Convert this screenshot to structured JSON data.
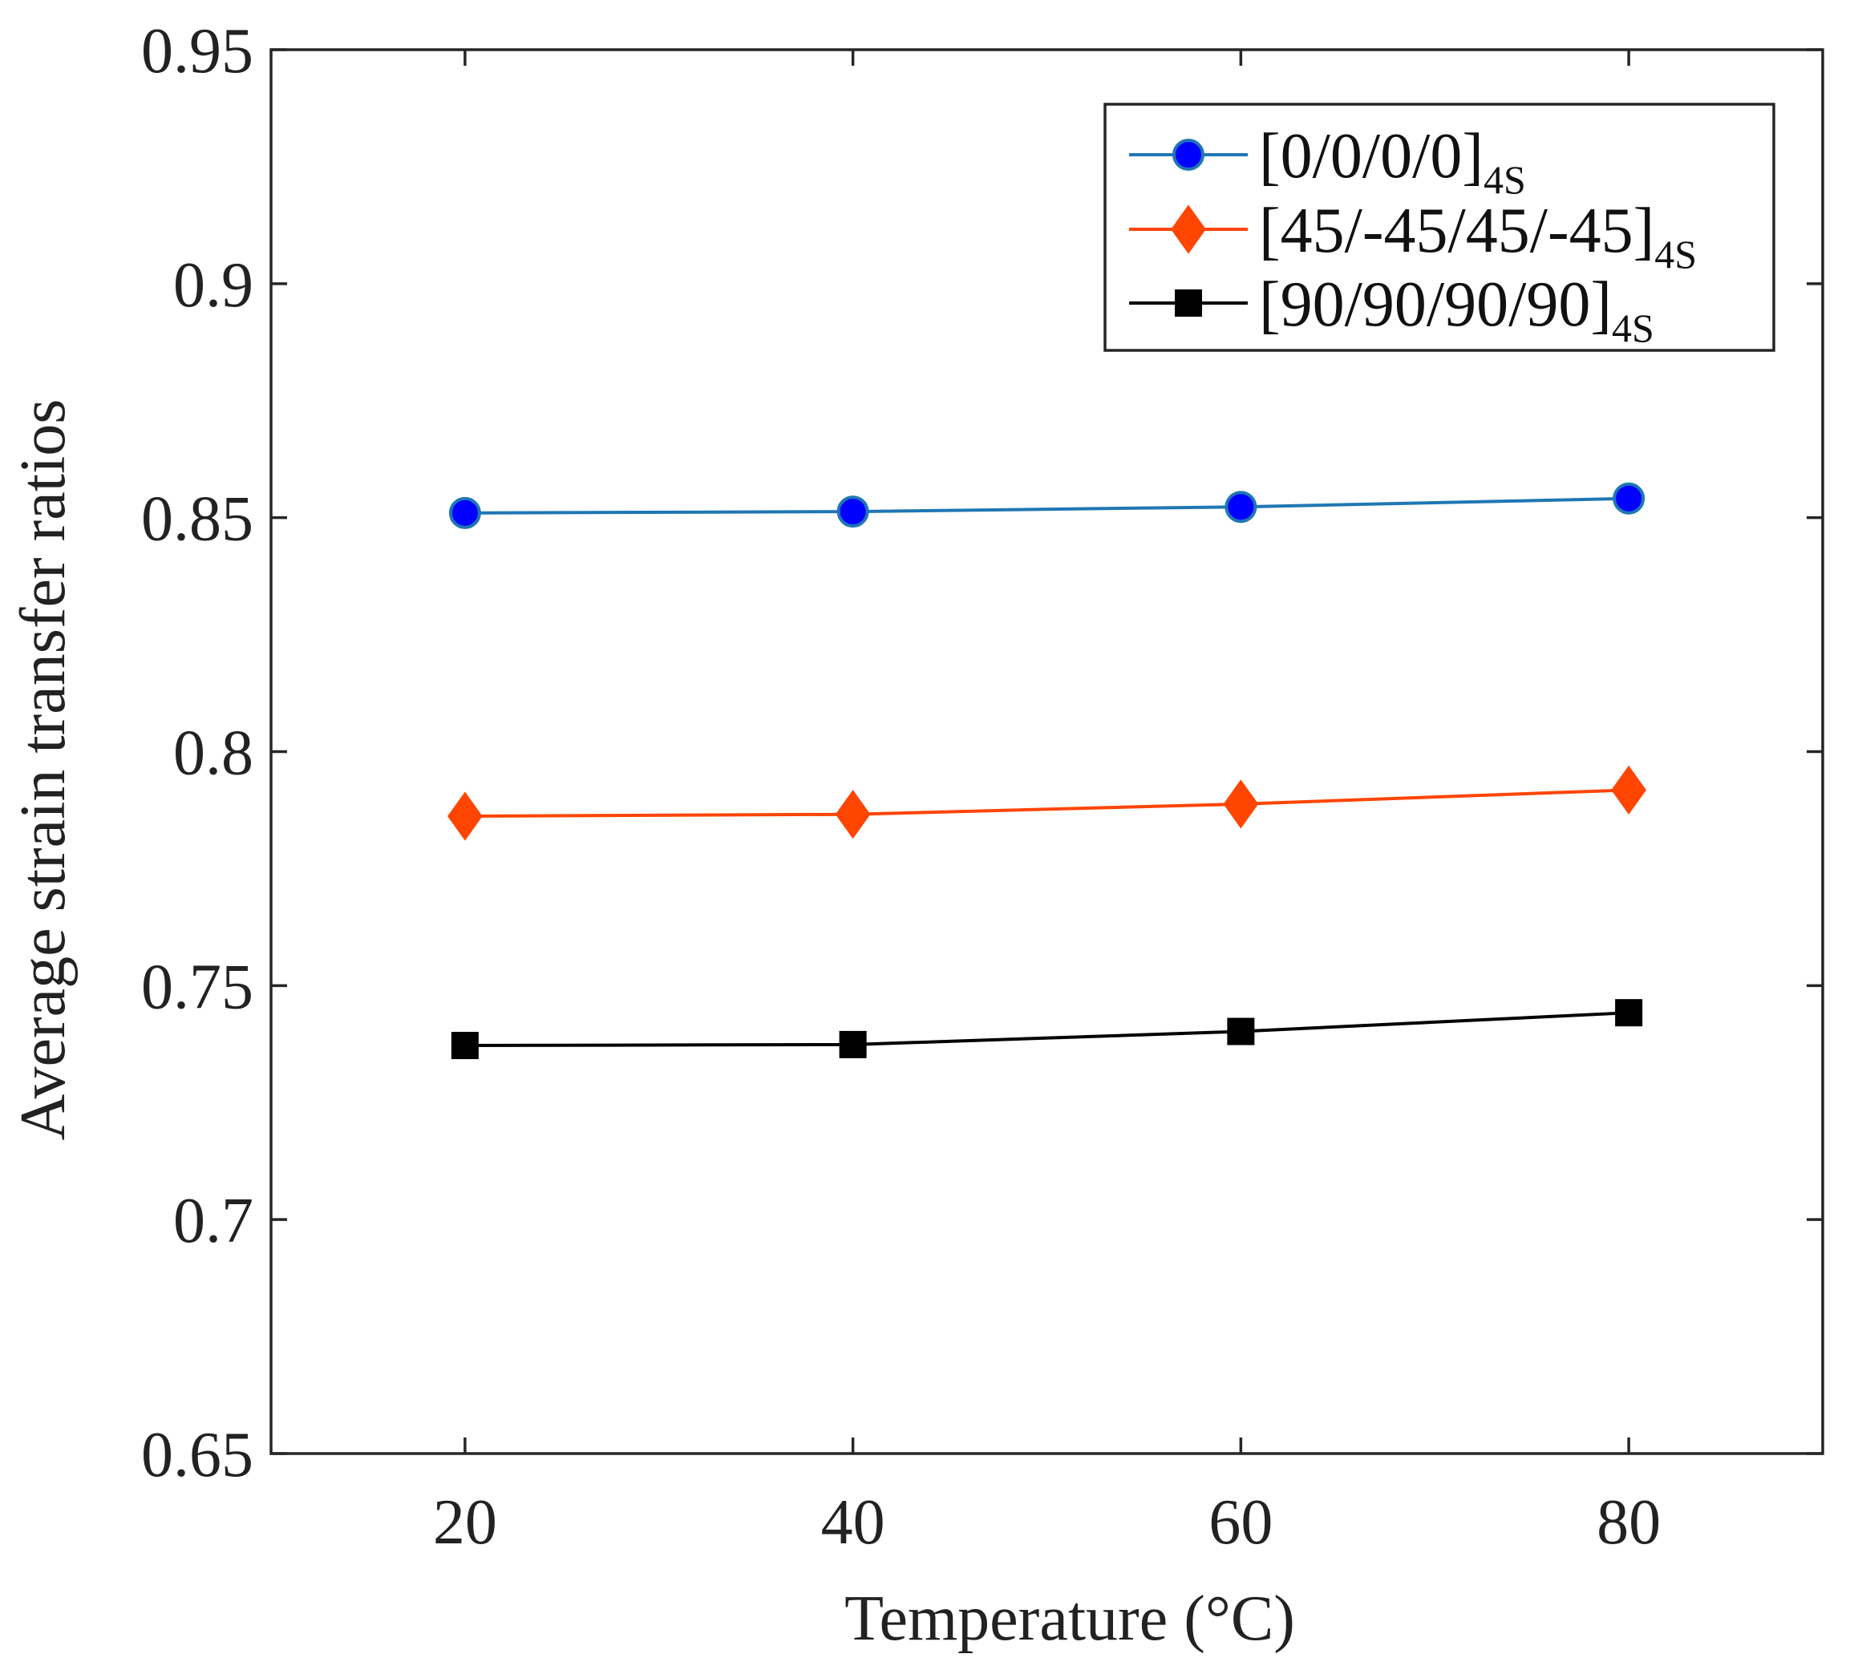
{
  "chart_data": {
    "type": "line",
    "title": "",
    "xlabel": "Temperature (°C)",
    "ylabel": "Average strain transfer ratios",
    "xlim": [
      10,
      90
    ],
    "ylim": [
      0.65,
      0.95
    ],
    "x": [
      20,
      40,
      60,
      80
    ],
    "xticks": [
      20,
      40,
      60,
      80
    ],
    "xtick_labels": [
      "20",
      "40",
      "60",
      "80"
    ],
    "yticks": [
      0.65,
      0.7,
      0.75,
      0.8,
      0.85,
      0.9,
      0.95
    ],
    "ytick_labels": [
      "0.65",
      "0.7",
      "0.75",
      "0.8",
      "0.85",
      "0.9",
      "0.95"
    ],
    "grid": false,
    "legend_position": "top-right",
    "series": [
      {
        "name": "[0/0/0/0]4S",
        "label_main": "[0/0/0/0]",
        "label_sub": "4S",
        "marker": "circle",
        "line_color": "#1f77b4",
        "marker_color": "#0000ff",
        "values": [
          0.851,
          0.8513,
          0.8523,
          0.8541
        ]
      },
      {
        "name": "[45/-45/45/-45]4S",
        "label_main": "[45/-45/45/-45]",
        "label_sub": "4S",
        "marker": "diamond",
        "line_color": "#ff4500",
        "marker_color": "#ff4500",
        "values": [
          0.7862,
          0.7866,
          0.7888,
          0.7918
        ]
      },
      {
        "name": "[90/90/90/90]4S",
        "label_main": "[90/90/90/90]",
        "label_sub": "4S",
        "marker": "square",
        "line_color": "#000000",
        "marker_color": "#000000",
        "values": [
          0.7372,
          0.7374,
          0.7402,
          0.7442
        ]
      }
    ]
  }
}
